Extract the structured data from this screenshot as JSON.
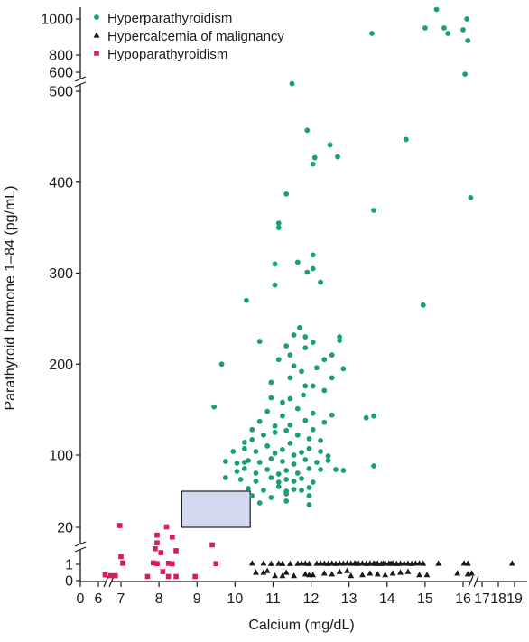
{
  "chart_data": {
    "type": "scatter",
    "xlabel": "Calcium (mg/dL)",
    "ylabel": "Parathyroid hormone 1–84 (pg/mL)",
    "x_ticks": [
      {
        "value": 0,
        "label": "0"
      },
      {
        "value": 6,
        "label": "6"
      },
      {
        "value": 7,
        "label": "7"
      },
      {
        "value": 8,
        "label": "8"
      },
      {
        "value": 9,
        "label": "9"
      },
      {
        "value": 10,
        "label": "10"
      },
      {
        "value": 11,
        "label": "11"
      },
      {
        "value": 12,
        "label": "12"
      },
      {
        "value": 13,
        "label": "13"
      },
      {
        "value": 14,
        "label": "14"
      },
      {
        "value": 15,
        "label": "15"
      },
      {
        "value": 16,
        "label": "16"
      },
      {
        "value": 17,
        "label": "17"
      },
      {
        "value": 18,
        "label": "18"
      },
      {
        "value": 19,
        "label": "19"
      }
    ],
    "y_ticks": [
      {
        "value": 0,
        "label": "0"
      },
      {
        "value": 1,
        "label": "1"
      },
      {
        "value": 20,
        "label": "20"
      },
      {
        "value": 100,
        "label": "100"
      },
      {
        "value": 200,
        "label": "200"
      },
      {
        "value": 300,
        "label": "300"
      },
      {
        "value": 400,
        "label": "400"
      },
      {
        "value": 500,
        "label": "500"
      },
      {
        "value": 600,
        "label": "600"
      },
      {
        "value": 800,
        "label": "800"
      },
      {
        "value": 1000,
        "label": "1000"
      }
    ],
    "legend_position": "top-left",
    "axis_breaks": [
      "x between 0 and 6",
      "y between 1 and 20",
      "y between 500 and 600",
      "x between 16 and 17"
    ],
    "reference_range": {
      "x": [
        8.6,
        10.4
      ],
      "y": [
        20,
        60
      ],
      "color": "#d3d7ef"
    },
    "series": [
      {
        "name": "Hyperparathyroidism",
        "marker": "circle",
        "color": "#1b9f72",
        "points": [
          [
            15.3,
            1070
          ],
          [
            15.5,
            950
          ],
          [
            15.6,
            920
          ],
          [
            16.0,
            940
          ],
          [
            16.2,
            1000
          ],
          [
            16.25,
            880
          ],
          [
            13.6,
            920
          ],
          [
            16.1,
            590
          ],
          [
            15.0,
            950
          ],
          [
            11.5,
            540
          ],
          [
            14.5,
            447
          ],
          [
            11.9,
            457
          ],
          [
            12.5,
            441
          ],
          [
            12.1,
            427
          ],
          [
            12.05,
            420
          ],
          [
            12.7,
            428
          ],
          [
            16.4,
            383
          ],
          [
            11.35,
            387
          ],
          [
            13.65,
            369
          ],
          [
            11.15,
            355
          ],
          [
            11.15,
            350
          ],
          [
            11.05,
            310
          ],
          [
            11.65,
            312
          ],
          [
            12.05,
            320
          ],
          [
            12.05,
            305
          ],
          [
            12.25,
            290
          ],
          [
            10.3,
            270
          ],
          [
            11.05,
            287
          ],
          [
            11.9,
            301
          ],
          [
            14.95,
            265
          ],
          [
            11.7,
            240
          ],
          [
            11.55,
            232
          ],
          [
            11.85,
            230
          ],
          [
            12.05,
            224
          ],
          [
            12.75,
            230
          ],
          [
            12.75,
            226
          ],
          [
            11.35,
            220
          ],
          [
            11.85,
            218
          ],
          [
            12.55,
            210
          ],
          [
            10.65,
            225
          ],
          [
            9.65,
            200
          ],
          [
            11.45,
            210
          ],
          [
            12.85,
            195
          ],
          [
            11.15,
            205
          ],
          [
            12.35,
            205
          ],
          [
            11.55,
            198
          ],
          [
            11.75,
            192
          ],
          [
            12.15,
            196
          ],
          [
            10.95,
            180
          ],
          [
            11.45,
            185
          ],
          [
            11.85,
            176
          ],
          [
            12.55,
            185
          ],
          [
            12.05,
            176
          ],
          [
            9.45,
            153
          ],
          [
            10.95,
            163
          ],
          [
            11.25,
            158
          ],
          [
            11.45,
            162
          ],
          [
            11.8,
            166
          ],
          [
            12.35,
            171
          ],
          [
            10.85,
            148
          ],
          [
            11.25,
            143
          ],
          [
            11.65,
            151
          ],
          [
            12.05,
            146
          ],
          [
            12.55,
            144
          ],
          [
            13.65,
            143
          ],
          [
            13.45,
            141
          ],
          [
            10.45,
            128
          ],
          [
            10.65,
            137
          ],
          [
            11.05,
            132
          ],
          [
            11.45,
            133
          ],
          [
            11.85,
            138
          ],
          [
            12.35,
            136
          ],
          [
            10.25,
            114
          ],
          [
            10.45,
            117
          ],
          [
            10.75,
            122
          ],
          [
            11.05,
            125
          ],
          [
            11.35,
            127
          ],
          [
            11.65,
            122
          ],
          [
            11.95,
            118
          ],
          [
            12.25,
            116
          ],
          [
            9.95,
            104
          ],
          [
            10.25,
            107
          ],
          [
            10.55,
            104
          ],
          [
            10.85,
            110
          ],
          [
            11.05,
            102
          ],
          [
            11.25,
            106
          ],
          [
            11.55,
            100
          ],
          [
            11.75,
            103
          ],
          [
            11.95,
            107
          ],
          [
            12.25,
            104
          ],
          [
            12.45,
            99
          ],
          [
            9.75,
            93
          ],
          [
            10.05,
            91
          ],
          [
            10.35,
            94
          ],
          [
            10.65,
            92
          ],
          [
            10.95,
            96
          ],
          [
            11.25,
            93
          ],
          [
            11.55,
            90
          ],
          [
            11.85,
            95
          ],
          [
            12.15,
            92
          ],
          [
            12.45,
            94
          ],
          [
            10.05,
            82
          ],
          [
            10.25,
            85
          ],
          [
            10.55,
            80
          ],
          [
            10.85,
            84
          ],
          [
            11.15,
            79
          ],
          [
            11.35,
            83
          ],
          [
            11.65,
            80
          ],
          [
            11.95,
            85
          ],
          [
            12.25,
            84
          ],
          [
            12.65,
            84
          ],
          [
            12.85,
            83
          ],
          [
            13.65,
            88
          ],
          [
            9.75,
            75
          ],
          [
            10.15,
            73
          ],
          [
            10.55,
            71
          ],
          [
            10.95,
            75
          ],
          [
            11.15,
            70
          ],
          [
            11.35,
            73
          ],
          [
            11.55,
            71
          ],
          [
            11.75,
            74
          ],
          [
            12.05,
            70
          ],
          [
            10.35,
            63
          ],
          [
            10.75,
            61
          ],
          [
            11.15,
            65
          ],
          [
            11.35,
            60
          ],
          [
            11.55,
            62
          ],
          [
            11.75,
            61
          ],
          [
            11.95,
            64
          ],
          [
            10.45,
            55
          ],
          [
            10.95,
            53
          ],
          [
            11.35,
            57
          ],
          [
            11.95,
            55
          ],
          [
            10.65,
            47
          ],
          [
            11.35,
            49
          ],
          [
            11.95,
            45
          ],
          [
            10.25,
            92
          ],
          [
            11.45,
            113
          ],
          [
            12.05,
            128
          ]
        ]
      },
      {
        "name": "Hypercalcemia of malignancy",
        "marker": "triangle",
        "color": "#1a1a1a",
        "points": [
          [
            10.75,
            0.5
          ],
          [
            10.85,
            0.6
          ],
          [
            11.05,
            0.3
          ],
          [
            11.35,
            0.5
          ],
          [
            11.55,
            0.3
          ],
          [
            11.85,
            0.4
          ],
          [
            11.95,
            0.35
          ],
          [
            12.05,
            0.35
          ],
          [
            12.35,
            0.45
          ],
          [
            12.75,
            0.55
          ],
          [
            12.95,
            0.6
          ],
          [
            13.35,
            0.35
          ],
          [
            13.55,
            0.45
          ],
          [
            13.75,
            0.4
          ],
          [
            13.95,
            0.35
          ],
          [
            14.15,
            0.45
          ],
          [
            14.35,
            0.5
          ],
          [
            14.55,
            0.55
          ],
          [
            14.85,
            0.35
          ],
          [
            15.05,
            0.35
          ],
          [
            15.85,
            0.45
          ],
          [
            16.25,
            0.4
          ],
          [
            16.45,
            0.45
          ],
          [
            10.55,
            0.5
          ],
          [
            11.25,
            0.3
          ],
          [
            12.55,
            0.4
          ],
          [
            13.05,
            0.3
          ],
          [
            10.45,
            1.55
          ],
          [
            10.75,
            1.55
          ],
          [
            10.95,
            1.35
          ],
          [
            11.15,
            1.45
          ],
          [
            11.25,
            1.35
          ],
          [
            11.45,
            1.35
          ],
          [
            11.75,
            1.55
          ],
          [
            11.85,
            1.45
          ],
          [
            11.95,
            1.35
          ],
          [
            12.15,
            1.45
          ],
          [
            12.35,
            1.45
          ],
          [
            12.45,
            1.35
          ],
          [
            12.55,
            1.55
          ],
          [
            12.65,
            1.35
          ],
          [
            12.75,
            1.55
          ],
          [
            12.85,
            1.45
          ],
          [
            12.95,
            1.55
          ],
          [
            13.05,
            1.45
          ],
          [
            13.15,
            1.55
          ],
          [
            13.25,
            1.45
          ],
          [
            13.35,
            1.55
          ],
          [
            13.45,
            1.35
          ],
          [
            13.55,
            1.45
          ],
          [
            13.65,
            1.55
          ],
          [
            13.75,
            1.45
          ],
          [
            13.85,
            1.35
          ],
          [
            13.95,
            1.55
          ],
          [
            14.05,
            1.45
          ],
          [
            14.15,
            1.55
          ],
          [
            14.25,
            1.35
          ],
          [
            14.35,
            1.45
          ],
          [
            14.45,
            1.55
          ],
          [
            14.55,
            1.45
          ],
          [
            14.65,
            1.35
          ],
          [
            14.85,
            1.55
          ],
          [
            14.95,
            1.45
          ],
          [
            15.35,
            1.45
          ],
          [
            16.05,
            1.55
          ],
          [
            16.25,
            1.45
          ],
          [
            18.85,
            1.5
          ],
          [
            11.65,
            1.4
          ],
          [
            12.25,
            1.5
          ],
          [
            13.2,
            1.4
          ],
          [
            14.1,
            1.4
          ],
          [
            14.75,
            1.55
          ],
          [
            13.9,
            1.5
          ],
          [
            13.7,
            1.35
          ]
        ]
      },
      {
        "name": "Hypoparathyroidism",
        "marker": "square",
        "color": "#d81b5a",
        "points": [
          [
            6.95,
            22
          ],
          [
            7.0,
            5
          ],
          [
            8.2,
            20.5
          ],
          [
            7.95,
            16
          ],
          [
            7.95,
            12
          ],
          [
            8.35,
            15
          ],
          [
            7.9,
            9
          ],
          [
            8.05,
            7
          ],
          [
            8.45,
            8
          ],
          [
            9.4,
            11
          ],
          [
            9.5,
            1.35
          ],
          [
            7.05,
            1.75
          ],
          [
            7.05,
            1.55
          ],
          [
            7.85,
            1.7
          ],
          [
            7.95,
            1.35
          ],
          [
            8.25,
            1.55
          ],
          [
            8.35,
            1.25
          ],
          [
            6.3,
            0.35
          ],
          [
            6.55,
            0.3
          ],
          [
            6.75,
            0.3
          ],
          [
            7.7,
            0.25
          ],
          [
            8.1,
            0.55
          ],
          [
            8.25,
            0.25
          ],
          [
            8.45,
            0.25
          ],
          [
            8.95,
            0.25
          ]
        ]
      }
    ]
  }
}
